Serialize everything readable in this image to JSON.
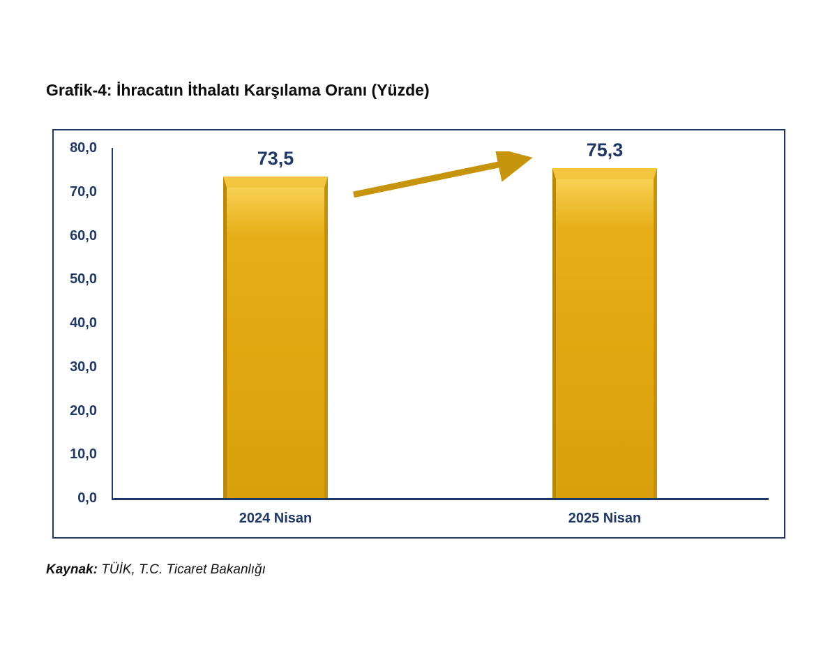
{
  "title": "Grafik-4: İhracatın İthalatı Karşılama Oranı (Yüzde)",
  "caption": {
    "label": "Kaynak:",
    "text": " TÜİK, T.C. Ticaret Bakanlığı"
  },
  "chart_data": {
    "type": "bar",
    "title": "Grafik-4: İhracatın İthalatı Karşılama Oranı (Yüzde)",
    "categories": [
      "2024 Nisan",
      "2025 Nisan"
    ],
    "values": [
      73.5,
      75.3
    ],
    "value_labels": [
      "73,5",
      "75,3"
    ],
    "ylim": [
      0,
      80
    ],
    "ytick_step": 10,
    "ytick_labels": [
      "0,0",
      "10,0",
      "20,0",
      "30,0",
      "40,0",
      "50,0",
      "60,0",
      "70,0",
      "80,0"
    ],
    "xlabel": "",
    "ylabel": "",
    "grid": false,
    "legend": "none",
    "annotations": [
      "upward trend arrow from 2024 Nisan bar to 2025 Nisan bar"
    ],
    "colors": {
      "bar_body": "#e2a70e",
      "bar_bevel_light": "#f2c63f",
      "bar_bevel_dark": "#b9880a",
      "arrow": "#c7940d",
      "axis_text": "#1f3864",
      "frame_border": "#1f3864",
      "title_text": "#0b0b0b"
    }
  }
}
